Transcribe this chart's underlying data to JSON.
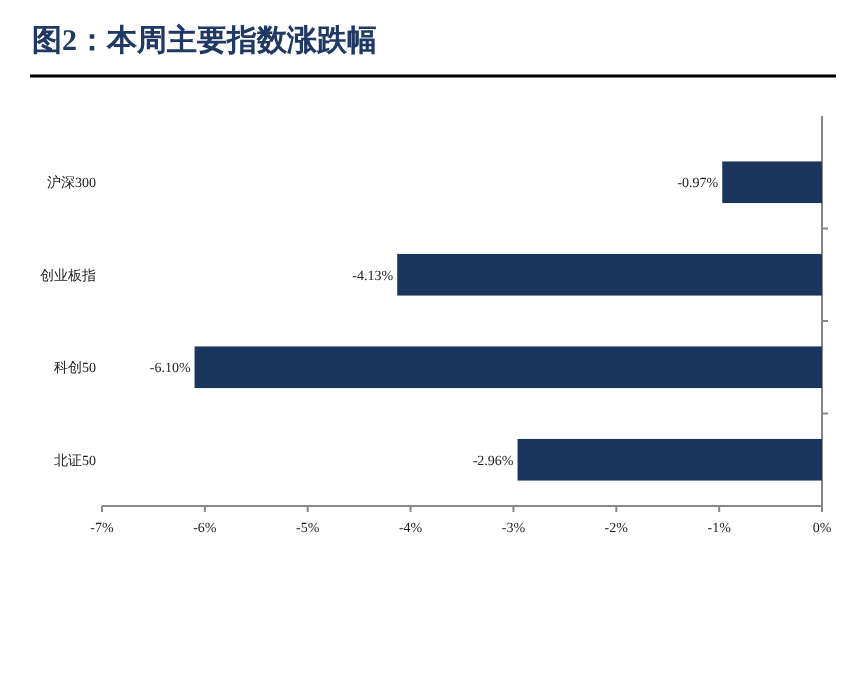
{
  "chart_data": {
    "type": "bar",
    "orientation": "horizontal",
    "title": "图2：本周主要指数涨跌幅",
    "categories": [
      "沪深300",
      "创业板指",
      "科创50",
      "北证50"
    ],
    "values": [
      -0.97,
      -4.13,
      -6.1,
      -2.96
    ],
    "value_labels": [
      "-0.97%",
      "-4.13%",
      "-6.10%",
      "-2.96%"
    ],
    "color": "#1a365d",
    "xlim": [
      -7,
      0
    ],
    "xticks": [
      {
        "value": -7,
        "label": "-7%"
      },
      {
        "value": -6,
        "label": "-6%"
      },
      {
        "value": -5,
        "label": "-5%"
      },
      {
        "value": -4,
        "label": "-4%"
      },
      {
        "value": -3,
        "label": "-3%"
      },
      {
        "value": -2,
        "label": "-2%"
      },
      {
        "value": -1,
        "label": "-1%"
      },
      {
        "value": 0,
        "label": "0%"
      }
    ]
  }
}
